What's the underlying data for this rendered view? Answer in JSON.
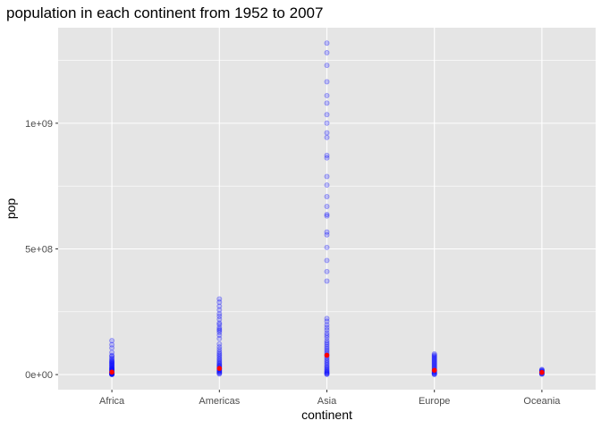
{
  "chart_data": {
    "type": "scatter",
    "title": "population in each continent from 1952 to 2007",
    "xlabel": "continent",
    "ylabel": "pop",
    "categories": [
      "Africa",
      "Americas",
      "Asia",
      "Europe",
      "Oceania"
    ],
    "y_ticks": [
      {
        "value": 0,
        "label": "0e+00"
      },
      {
        "value": 500000000,
        "label": "5e+08"
      },
      {
        "value": 1000000000,
        "label": "1e+09"
      }
    ],
    "ylim": [
      -60000000,
      1380000000
    ],
    "grid": true,
    "colors": {
      "panel": "#e5e5e5",
      "gridline": "#ffffff",
      "points": "#0000ff",
      "mean_points": "#ff0000"
    },
    "series": [
      {
        "category": "Africa",
        "values": [
          135000000,
          119000000,
          106000000,
          88000000,
          76000000,
          73000000,
          66000000,
          61000000,
          56000000,
          53000000,
          50000000,
          47000000,
          44000000,
          41000000,
          38000000,
          35000000,
          32000000,
          29000000,
          26000000,
          24000000,
          22000000,
          20000000,
          18000000,
          16000000,
          14000000,
          12000000,
          10000000,
          9000000,
          8000000,
          7000000,
          6000000,
          5000000,
          4000000,
          3000000,
          2000000,
          1500000,
          1000000,
          500000
        ]
      },
      {
        "category": "Americas",
        "values": [
          301000000,
          288000000,
          272000000,
          257000000,
          242000000,
          232000000,
          220000000,
          205000000,
          199000000,
          187000000,
          180000000,
          175000000,
          168000000,
          157000000,
          143000000,
          122000000,
          110000000,
          100000000,
          91000000,
          84000000,
          78000000,
          72000000,
          65000000,
          60000000,
          54000000,
          49000000,
          44000000,
          40000000,
          36000000,
          33000000,
          30000000,
          26000000,
          23000000,
          20000000,
          17000000,
          14000000,
          11000000,
          8000000,
          5000000,
          2500000
        ]
      },
      {
        "category": "Asia",
        "values": [
          1318683096,
          1280400000,
          1230075000,
          1164970000,
          1110000000,
          1080000000,
          1034172547,
          1000281000,
          962000000,
          943455000,
          872000000,
          862030000,
          788000000,
          754000000,
          708000000,
          669000000,
          637000000,
          631000000,
          567000000,
          556000000,
          506000000,
          454000000,
          410000000,
          372000000,
          223000000,
          212000000,
          198000000,
          187000000,
          177000000,
          165000000,
          156000000,
          147000000,
          135000000,
          127000000,
          120000000,
          112000000,
          105000000,
          98000000,
          91000000,
          84000000,
          78000000,
          71000000,
          65000000,
          58000000,
          52000000,
          46000000,
          40000000,
          34000000,
          29000000,
          24000000,
          19000000,
          15000000,
          11000000,
          8000000,
          5000000,
          2500000,
          1000000
        ]
      },
      {
        "category": "Europe",
        "values": [
          82400000,
          78000000,
          74000000,
          70000000,
          66000000,
          62000000,
          58000000,
          54000000,
          50000000,
          46000000,
          42000000,
          38000000,
          34000000,
          30000000,
          26000000,
          22000000,
          18000000,
          15000000,
          12000000,
          9000000,
          6000000,
          4000000,
          2000000,
          500000
        ]
      },
      {
        "category": "Oceania",
        "values": [
          20400000,
          18000000,
          16000000,
          14000000,
          12000000,
          10000000,
          8500000,
          6000000,
          4000000,
          2500000,
          1900000
        ]
      }
    ],
    "means": [
      {
        "category": "Africa",
        "value": 9916003
      },
      {
        "category": "Americas",
        "value": 24504795
      },
      {
        "category": "Asia",
        "value": 77038722
      },
      {
        "category": "Europe",
        "value": 17169765
      },
      {
        "category": "Oceania",
        "value": 8874672
      }
    ]
  }
}
